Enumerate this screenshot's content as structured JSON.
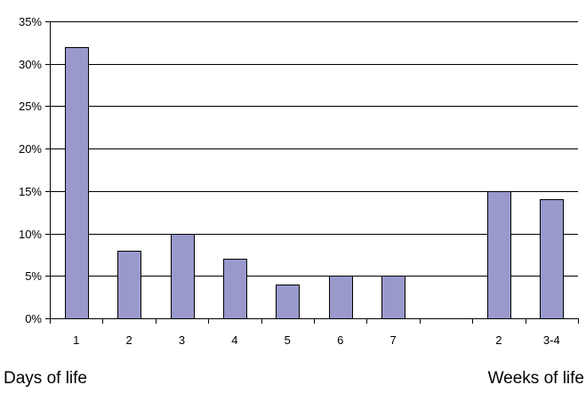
{
  "chart_data": {
    "type": "bar",
    "title": "",
    "xlabel": "",
    "ylabel": "",
    "categories": [
      "1",
      "2",
      "3",
      "4",
      "5",
      "6",
      "7",
      "",
      "2",
      "3-4"
    ],
    "values": [
      32,
      8,
      10,
      7,
      4,
      5,
      5,
      null,
      15,
      14
    ],
    "ylim": [
      0,
      35
    ],
    "yticks": [
      0,
      5,
      10,
      15,
      20,
      25,
      30,
      35
    ],
    "ytick_labels": [
      "0%",
      "5%",
      "10%",
      "15%",
      "20%",
      "25%",
      "30%",
      "35%"
    ],
    "grid": "horizontal",
    "legend": "none",
    "bar_color": "#9999cc",
    "bar_edge_color": "#000000",
    "group_labels": {
      "left": "Days of life",
      "right": "Weeks of life"
    }
  }
}
